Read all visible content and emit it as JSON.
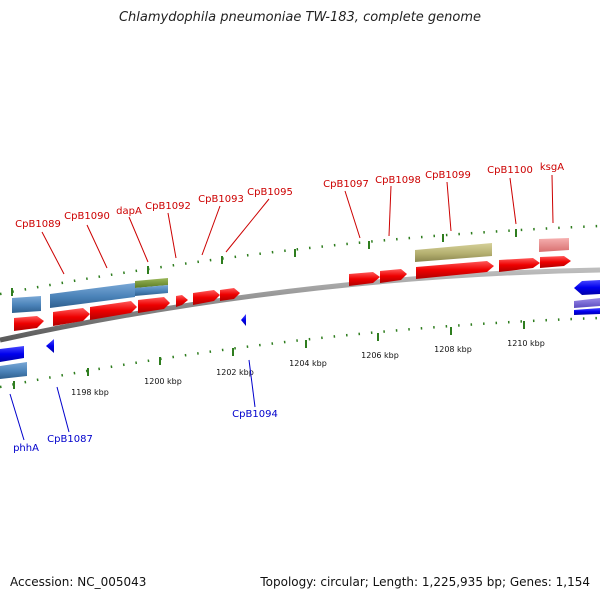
{
  "header": {
    "title": "Chlamydophila pneumoniae TW-183, complete genome"
  },
  "footer": {
    "accession": "Accession: NC_005043",
    "summary": "Topology: circular; Length: 1,225,935 bp; Genes: 1,154"
  },
  "colors": {
    "forward_label": "#cc0000",
    "reverse_label": "#0000cc",
    "forward_gene": "#ee0000",
    "reverse_gene": "#0000ee",
    "steelblue_feature": "#4a82b8",
    "olive_feature": "#b5b070",
    "green_feature": "#6a8a2a",
    "pink_feature": "#e88a8a",
    "backbone": "#888888",
    "tick": "#2e7d1e"
  },
  "scale": {
    "ticks": [
      "1198 kbp",
      "1200 kbp",
      "1202 kbp",
      "1204 kbp",
      "1206 kbp",
      "1208 kbp",
      "1210 kbp"
    ]
  },
  "genes": {
    "forward": [
      "CpB1089",
      "CpB1090",
      "dapA",
      "CpB1092",
      "CpB1093",
      "CpB1095",
      "CpB1097",
      "CpB1098",
      "CpB1099",
      "CpB1100",
      "ksgA"
    ],
    "reverse": [
      "phhA",
      "CpB1087",
      "CpB1094"
    ]
  }
}
